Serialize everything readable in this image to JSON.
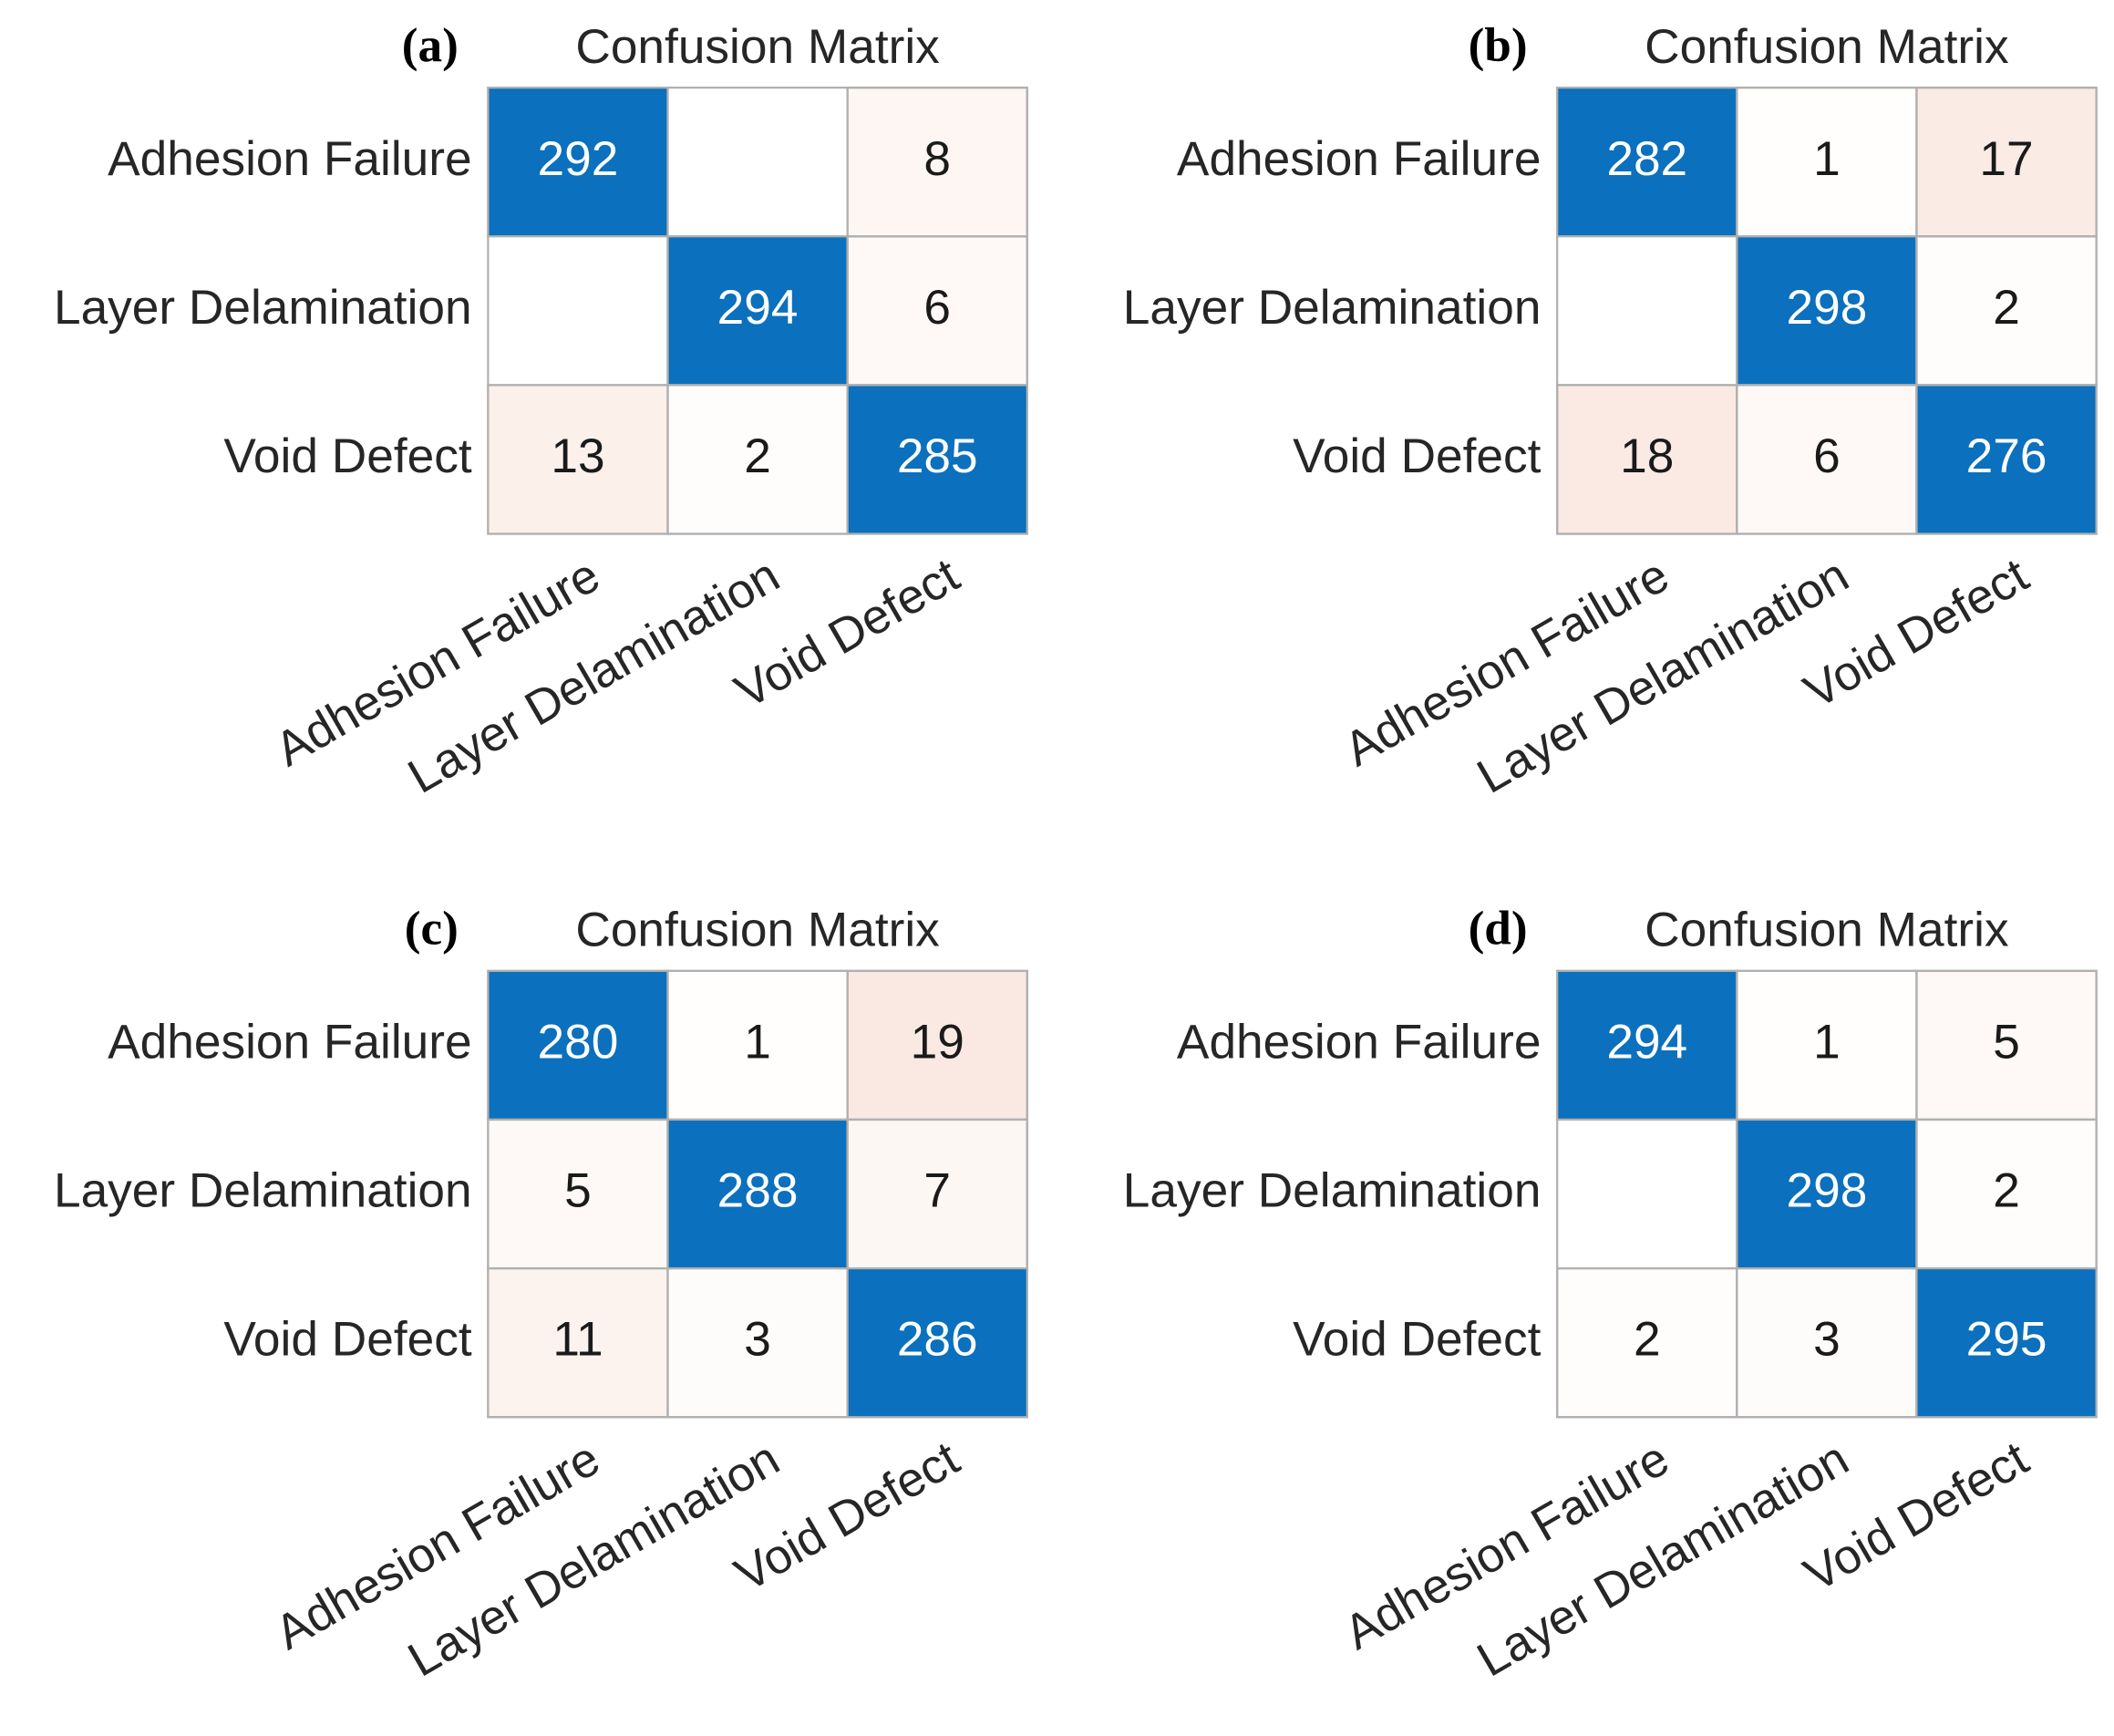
{
  "chart_data": [
    {
      "type": "heatmap",
      "panel_label": "(a)",
      "title": "Confusion Matrix",
      "rows": [
        "Adhesion Failure",
        "Layer Delamination",
        "Void Defect"
      ],
      "columns": [
        "Adhesion Failure",
        "Layer Delamination",
        "Void Defect"
      ],
      "values": [
        [
          292,
          null,
          8
        ],
        [
          null,
          294,
          6
        ],
        [
          13,
          2,
          285
        ]
      ],
      "diagonal_color": "#0b70bd",
      "off_diagonal_color": "#d95319"
    },
    {
      "type": "heatmap",
      "panel_label": "(b)",
      "title": "Confusion Matrix",
      "rows": [
        "Adhesion Failure",
        "Layer Delamination",
        "Void Defect"
      ],
      "columns": [
        "Adhesion Failure",
        "Layer Delamination",
        "Void Defect"
      ],
      "values": [
        [
          282,
          1,
          17
        ],
        [
          null,
          298,
          2
        ],
        [
          18,
          6,
          276
        ]
      ],
      "diagonal_color": "#0b70bd",
      "off_diagonal_color": "#d95319"
    },
    {
      "type": "heatmap",
      "panel_label": "(c)",
      "title": "Confusion Matrix",
      "rows": [
        "Adhesion Failure",
        "Layer Delamination",
        "Void Defect"
      ],
      "columns": [
        "Adhesion Failure",
        "Layer Delamination",
        "Void Defect"
      ],
      "values": [
        [
          280,
          1,
          19
        ],
        [
          5,
          288,
          7
        ],
        [
          11,
          3,
          286
        ]
      ],
      "diagonal_color": "#0b70bd",
      "off_diagonal_color": "#d95319"
    },
    {
      "type": "heatmap",
      "panel_label": "(d)",
      "title": "Confusion Matrix",
      "rows": [
        "Adhesion Failure",
        "Layer Delamination",
        "Void Defect"
      ],
      "columns": [
        "Adhesion Failure",
        "Layer Delamination",
        "Void Defect"
      ],
      "values": [
        [
          294,
          1,
          5
        ],
        [
          null,
          298,
          2
        ],
        [
          2,
          3,
          295
        ]
      ],
      "diagonal_color": "#0b70bd",
      "off_diagonal_color": "#d95319"
    }
  ]
}
